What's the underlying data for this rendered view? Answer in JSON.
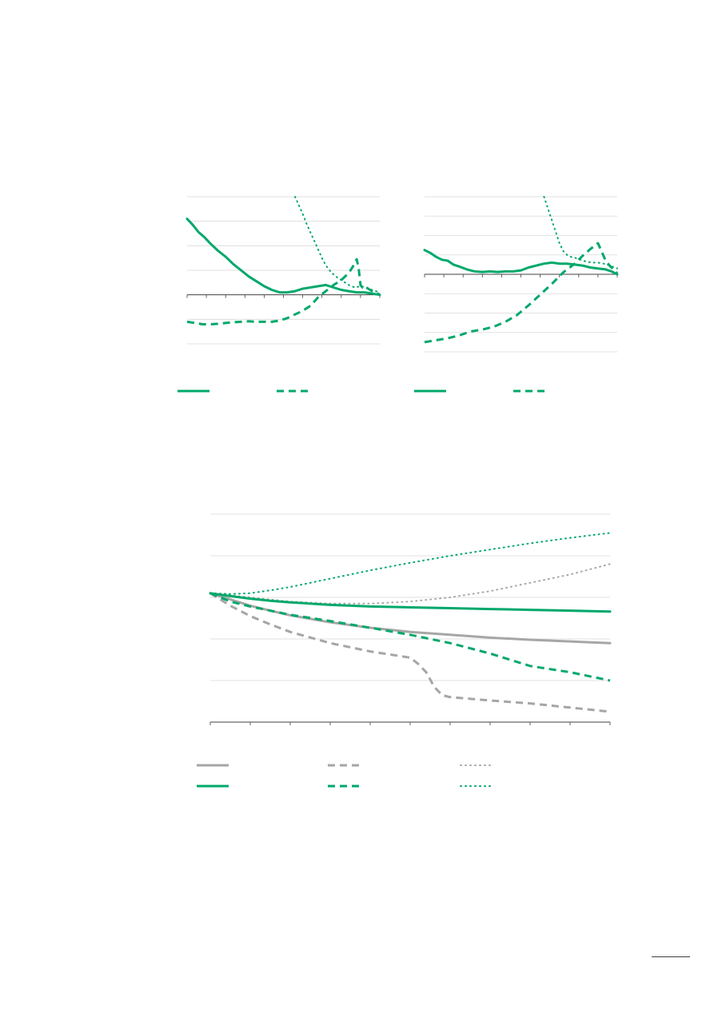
{
  "colors": {
    "green": "#00a86b",
    "grey": "#a6a6a6"
  },
  "chart_data": [
    {
      "type": "line",
      "panel": "top-left",
      "xlim": [
        0,
        100
      ],
      "ylim": [
        -2,
        4
      ],
      "yticks": [
        -2,
        -1,
        0,
        1,
        2,
        3,
        4
      ],
      "xtick_count": 11,
      "series": [
        {
          "style": "solid",
          "color": "green",
          "x": [
            0,
            3,
            6,
            9,
            12,
            16,
            20,
            24,
            28,
            32,
            36,
            40,
            44,
            48,
            52,
            56,
            60,
            64,
            68,
            72,
            76,
            80,
            84,
            88,
            92,
            96,
            100
          ],
          "y": [
            3.1,
            2.85,
            2.55,
            2.35,
            2.1,
            1.8,
            1.55,
            1.25,
            1.0,
            0.75,
            0.55,
            0.35,
            0.2,
            0.1,
            0.1,
            0.15,
            0.25,
            0.3,
            0.35,
            0.4,
            0.3,
            0.2,
            0.15,
            0.1,
            0.1,
            0.05,
            0.0
          ]
        },
        {
          "style": "dash",
          "color": "green",
          "x": [
            0,
            4,
            8,
            12,
            16,
            20,
            24,
            28,
            32,
            36,
            40,
            44,
            48,
            52,
            56,
            60,
            64,
            68,
            72,
            76,
            80,
            84,
            86,
            88,
            89,
            90,
            91,
            92,
            94,
            96,
            98,
            100
          ],
          "y": [
            -1.1,
            -1.15,
            -1.2,
            -1.2,
            -1.18,
            -1.15,
            -1.12,
            -1.1,
            -1.08,
            -1.1,
            -1.1,
            -1.1,
            -1.05,
            -0.95,
            -0.8,
            -0.65,
            -0.45,
            -0.1,
            0.15,
            0.4,
            0.6,
            0.9,
            1.15,
            1.45,
            1.1,
            0.4,
            0.3,
            0.35,
            0.25,
            0.15,
            0.1,
            0.0
          ]
        },
        {
          "style": "dot",
          "color": "green",
          "x": [
            56,
            58,
            60,
            62,
            64,
            66,
            68,
            70,
            72,
            75,
            78,
            81,
            84,
            87,
            90,
            93,
            96,
            100
          ],
          "y": [
            4.0,
            3.65,
            3.3,
            2.9,
            2.55,
            2.2,
            1.85,
            1.5,
            1.2,
            0.9,
            0.7,
            0.55,
            0.4,
            0.3,
            0.35,
            0.3,
            0.2,
            0.1
          ]
        }
      ]
    },
    {
      "type": "line",
      "panel": "top-right",
      "xlim": [
        0,
        100
      ],
      "ylim": [
        -4,
        4
      ],
      "yticks": [
        -4,
        -3,
        -2,
        -1,
        0,
        1,
        2,
        3,
        4
      ],
      "xtick_count": 11,
      "series": [
        {
          "style": "solid",
          "color": "green",
          "x": [
            0,
            3,
            6,
            9,
            12,
            15,
            18,
            22,
            26,
            30,
            34,
            38,
            42,
            46,
            50,
            54,
            58,
            62,
            66,
            70,
            74,
            78,
            82,
            86,
            90,
            94,
            97,
            100
          ],
          "y": [
            1.25,
            1.1,
            0.9,
            0.75,
            0.7,
            0.5,
            0.4,
            0.25,
            0.15,
            0.12,
            0.15,
            0.12,
            0.15,
            0.15,
            0.2,
            0.35,
            0.45,
            0.55,
            0.6,
            0.55,
            0.55,
            0.5,
            0.45,
            0.35,
            0.3,
            0.25,
            0.15,
            0.0
          ]
        },
        {
          "style": "dash",
          "color": "green",
          "x": [
            0,
            6,
            12,
            18,
            24,
            30,
            36,
            42,
            48,
            54,
            60,
            66,
            72,
            78,
            82,
            86,
            88,
            90,
            92,
            94,
            96,
            98,
            100
          ],
          "y": [
            -3.5,
            -3.4,
            -3.3,
            -3.15,
            -2.95,
            -2.85,
            -2.7,
            -2.45,
            -2.1,
            -1.6,
            -1.05,
            -0.5,
            0.1,
            0.55,
            0.95,
            1.3,
            1.45,
            1.6,
            1.15,
            0.7,
            0.45,
            0.25,
            0.05
          ]
        },
        {
          "style": "dot",
          "color": "green",
          "x": [
            62,
            64,
            66,
            68,
            70,
            72,
            74,
            76,
            78,
            81,
            84,
            87,
            90,
            93,
            96,
            100
          ],
          "y": [
            4.0,
            3.4,
            2.8,
            2.2,
            1.6,
            1.2,
            1.0,
            0.9,
            0.85,
            0.75,
            0.65,
            0.6,
            0.6,
            0.55,
            0.45,
            0.3
          ]
        }
      ]
    },
    {
      "type": "line",
      "panel": "bottom",
      "xlim": [
        0,
        10
      ],
      "ylim": [
        0,
        5
      ],
      "yticks": [
        0,
        1,
        2,
        3,
        4,
        5
      ],
      "xtick_count": 11,
      "series": [
        {
          "style": "solid",
          "color": "grey",
          "x": [
            0,
            0.5,
            1,
            1.5,
            2,
            3,
            4,
            5,
            6,
            7,
            8,
            9,
            10
          ],
          "y": [
            3.1,
            2.95,
            2.8,
            2.68,
            2.57,
            2.4,
            2.27,
            2.17,
            2.1,
            2.03,
            1.98,
            1.94,
            1.9
          ]
        },
        {
          "style": "dash",
          "color": "grey",
          "x": [
            0,
            0.5,
            1,
            1.5,
            2,
            3,
            4,
            5,
            5.2,
            5.4,
            5.6,
            5.8,
            6,
            7,
            8,
            9,
            10
          ],
          "y": [
            3.1,
            2.8,
            2.55,
            2.35,
            2.17,
            1.9,
            1.7,
            1.55,
            1.4,
            1.2,
            0.85,
            0.65,
            0.6,
            0.52,
            0.45,
            0.35,
            0.25
          ]
        },
        {
          "style": "dot",
          "color": "grey",
          "x": [
            0,
            0.5,
            1,
            1.5,
            2,
            3,
            4,
            5,
            6,
            7,
            8,
            9,
            10
          ],
          "y": [
            3.1,
            3.05,
            3.0,
            2.95,
            2.9,
            2.85,
            2.85,
            2.9,
            3.0,
            3.15,
            3.35,
            3.55,
            3.8
          ]
        },
        {
          "style": "solid",
          "color": "green",
          "x": [
            0,
            0.5,
            1,
            1.5,
            2,
            3,
            4,
            5,
            6,
            7,
            8,
            9,
            10
          ],
          "y": [
            3.1,
            3.03,
            2.97,
            2.92,
            2.88,
            2.82,
            2.78,
            2.76,
            2.74,
            2.72,
            2.7,
            2.68,
            2.66
          ]
        },
        {
          "style": "dash",
          "color": "green",
          "x": [
            0,
            0.5,
            1,
            1.5,
            2,
            3,
            4,
            5,
            6,
            7,
            8,
            9,
            10
          ],
          "y": [
            3.1,
            2.9,
            2.78,
            2.68,
            2.58,
            2.43,
            2.27,
            2.1,
            1.9,
            1.65,
            1.35,
            1.2,
            1.0
          ]
        },
        {
          "style": "dot",
          "color": "green",
          "x": [
            0,
            0.5,
            1,
            1.5,
            2,
            3,
            4,
            5,
            6,
            7,
            8,
            9,
            10
          ],
          "y": [
            3.1,
            3.08,
            3.1,
            3.17,
            3.25,
            3.45,
            3.65,
            3.83,
            4.0,
            4.15,
            4.3,
            4.43,
            4.55
          ]
        }
      ]
    }
  ]
}
